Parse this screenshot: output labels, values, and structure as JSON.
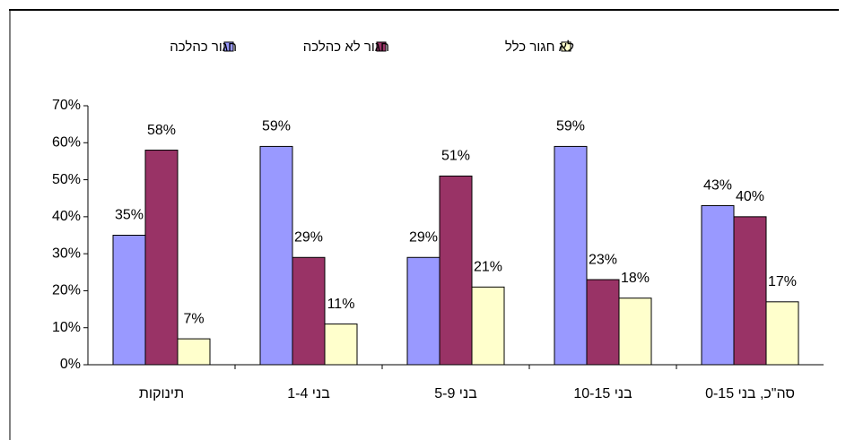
{
  "chart_data": {
    "type": "bar",
    "categories": [
      "תינוקות",
      "בני 1-4",
      "בני 5-9",
      "בני 10-15",
      "סה\"כ, בני 0-15"
    ],
    "series": [
      {
        "name": "חגור כהלכה",
        "color": "#9999ff",
        "values": [
          35,
          59,
          29,
          59,
          43
        ],
        "value_labels": [
          "35%",
          "59%",
          "29%",
          "59%",
          "43%"
        ]
      },
      {
        "name": "חגור לא כהלכה",
        "color": "#993366",
        "values": [
          58,
          29,
          51,
          23,
          40
        ],
        "value_labels": [
          "58%",
          "29%",
          "51%",
          "23%",
          "40%"
        ]
      },
      {
        "name": "לא חגור כלל",
        "color": "#ffffcc",
        "values": [
          7,
          11,
          21,
          18,
          17
        ],
        "value_labels": [
          "7%",
          "11%",
          "21%",
          "18%",
          "17%"
        ]
      }
    ],
    "ylim": [
      0,
      70
    ],
    "yticks": [
      {
        "value": 0,
        "label": "0%"
      },
      {
        "value": 10,
        "label": "10%"
      },
      {
        "value": 20,
        "label": "20%"
      },
      {
        "value": 30,
        "label": "30%"
      },
      {
        "value": 40,
        "label": "40%"
      },
      {
        "value": 50,
        "label": "50%"
      },
      {
        "value": 60,
        "label": "60%"
      },
      {
        "value": 70,
        "label": "70%"
      }
    ],
    "legend": "top"
  }
}
